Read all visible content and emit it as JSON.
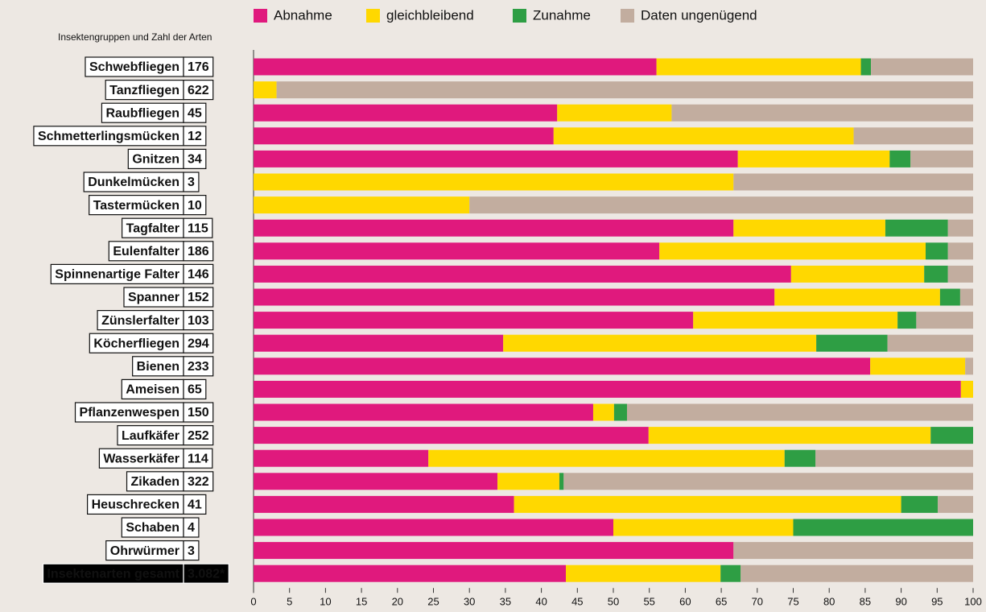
{
  "chart_data": {
    "type": "stacked-bar-horizontal",
    "subtitle": "Insektengruppen und Zahl der Arten",
    "categories": [
      "Schwebfliegen",
      "Tanzfliegen",
      "Raubfliegen",
      "Schmetterlingsmücken",
      "Gnitzen",
      "Dunkelmücken",
      "Tastermücken",
      "Tagfalter",
      "Eulenfalter",
      "Spinnenartige Falter",
      "Spanner",
      "Zünslerfalter",
      "Köcherfliegen",
      "Bienen",
      "Ameisen",
      "Pflanzenwespen",
      "Laufkäfer",
      "Wasserkäfer",
      "Zikaden",
      "Heuschrecken",
      "Schaben",
      "Ohrwürmer",
      "Insektenarten gesamt"
    ],
    "counts": [
      "176",
      "622",
      "45",
      "12",
      "34",
      "3",
      "10",
      "115",
      "186",
      "146",
      "152",
      "103",
      "294",
      "233",
      "65",
      "150",
      "252",
      "114",
      "322",
      "41",
      "4",
      "3",
      "3.082*"
    ],
    "series": [
      {
        "name": "Abnahme",
        "color": "#e0197d",
        "values": [
          56,
          0,
          42.2,
          41.7,
          67.3,
          0,
          0,
          66.7,
          56.4,
          74.7,
          72.4,
          61.1,
          34.7,
          85.7,
          98.3,
          47.2,
          54.9,
          24.3,
          33.9,
          36.2,
          50,
          66.7,
          43.4
        ]
      },
      {
        "name": "gleichbleibend",
        "color": "#ffd800",
        "values": [
          28.4,
          3.2,
          15.9,
          41.7,
          21.1,
          66.7,
          30,
          21.1,
          37,
          18.5,
          23,
          28.4,
          43.5,
          13.2,
          1.7,
          2.9,
          39.2,
          49.5,
          8.6,
          53.8,
          25,
          0,
          21.5
        ]
      },
      {
        "name": "Zunahme",
        "color": "#2e9e44",
        "values": [
          1.4,
          0,
          0,
          0,
          2.9,
          0,
          0,
          8.7,
          3.1,
          3.3,
          2.8,
          2.6,
          9.9,
          0,
          0,
          1.8,
          5.9,
          4.3,
          0.6,
          5.1,
          25,
          0,
          2.8
        ]
      },
      {
        "name": "Daten ungenügend",
        "color": "#c2ad9f",
        "values": [
          14.2,
          96.8,
          41.9,
          16.6,
          8.7,
          33.3,
          70,
          3.5,
          3.5,
          3.5,
          1.8,
          7.9,
          11.9,
          1.1,
          0,
          48.1,
          0,
          21.9,
          56.9,
          4.9,
          0,
          33.3,
          32.3
        ]
      }
    ],
    "xlim": [
      0,
      100
    ],
    "xticks": [
      0,
      5,
      10,
      15,
      20,
      25,
      30,
      35,
      40,
      45,
      50,
      55,
      60,
      65,
      70,
      75,
      80,
      85,
      90,
      95,
      100
    ]
  }
}
